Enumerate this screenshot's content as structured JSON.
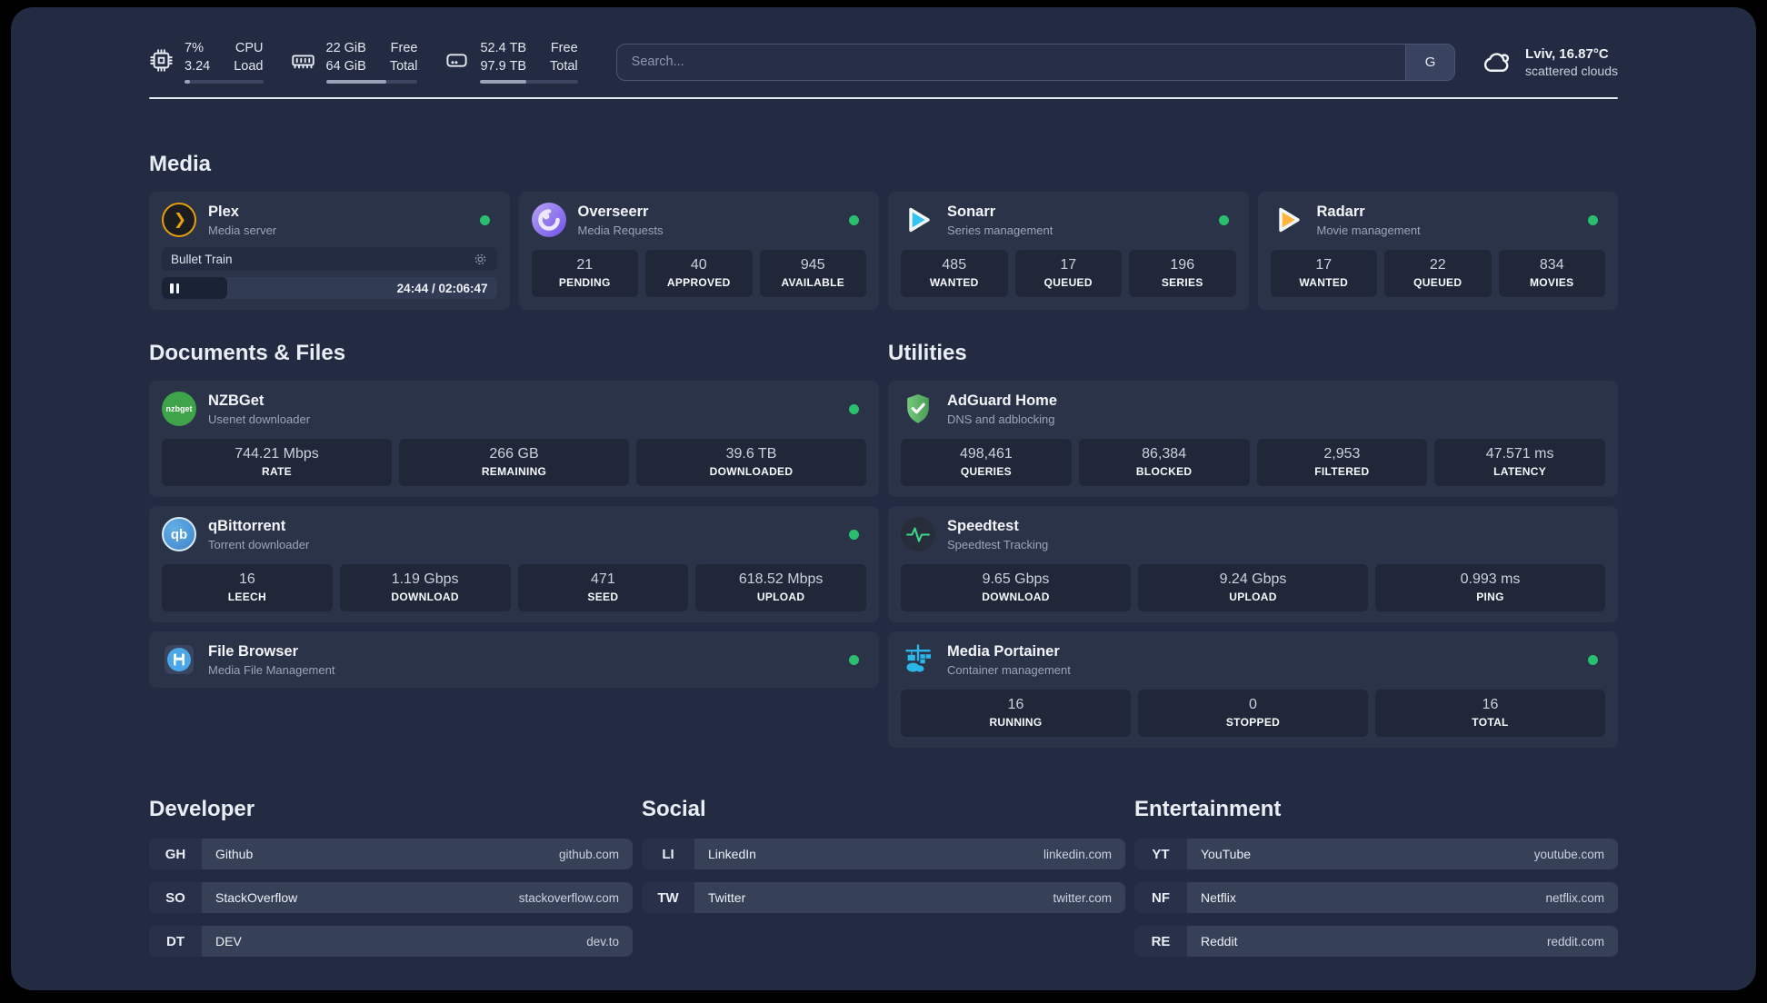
{
  "colors": {
    "status_online": "#2abf6e",
    "accent_plex": "#e5a00d",
    "accent_sonarr": "#35c3f2",
    "accent_radarr": "#ffb53d",
    "accent_adguard": "#5fb469",
    "accent_portainer": "#2cb5e8"
  },
  "system": {
    "cpu": {
      "icon": "cpu-chip",
      "value_top": "7%",
      "value_bottom": "3.24",
      "label_top": "CPU",
      "label_bottom": "Load",
      "progress_pct": 7
    },
    "memory": {
      "icon": "ram-module",
      "value_top": "22 GiB",
      "value_bottom": "64 GiB",
      "label_top": "Free",
      "label_bottom": "Total",
      "progress_pct": 66
    },
    "disk": {
      "icon": "hard-drive",
      "value_top": "52.4 TB",
      "value_bottom": "97.9 TB",
      "label_top": "Free",
      "label_bottom": "Total",
      "progress_pct": 47
    }
  },
  "search": {
    "placeholder": "Search...",
    "engine_button": "G"
  },
  "weather": {
    "icon": "scattered-clouds",
    "summary": "Lviv, 16.87°C",
    "condition": "scattered clouds"
  },
  "media": {
    "title": "Media",
    "plex": {
      "name": "Plex",
      "description": "Media server",
      "status": "online",
      "now_playing": "Bullet Train",
      "time_display": "24:44 / 02:06:47",
      "progress_pct": 19.5
    },
    "overseerr": {
      "name": "Overseerr",
      "description": "Media Requests",
      "status": "online",
      "stats": [
        {
          "value": "21",
          "label": "PENDING"
        },
        {
          "value": "40",
          "label": "APPROVED"
        },
        {
          "value": "945",
          "label": "AVAILABLE"
        }
      ]
    },
    "sonarr": {
      "name": "Sonarr",
      "description": "Series management",
      "status": "online",
      "stats": [
        {
          "value": "485",
          "label": "WANTED"
        },
        {
          "value": "17",
          "label": "QUEUED"
        },
        {
          "value": "196",
          "label": "SERIES"
        }
      ]
    },
    "radarr": {
      "name": "Radarr",
      "description": "Movie management",
      "status": "online",
      "stats": [
        {
          "value": "17",
          "label": "WANTED"
        },
        {
          "value": "22",
          "label": "QUEUED"
        },
        {
          "value": "834",
          "label": "MOVIES"
        }
      ]
    }
  },
  "documents": {
    "title": "Documents & Files",
    "nzbget": {
      "name": "NZBGet",
      "description": "Usenet downloader",
      "status": "online",
      "icon_text": "nzbget",
      "stats": [
        {
          "value": "744.21 Mbps",
          "label": "RATE"
        },
        {
          "value": "266 GB",
          "label": "REMAINING"
        },
        {
          "value": "39.6 TB",
          "label": "DOWNLOADED"
        }
      ]
    },
    "qbittorrent": {
      "name": "qBittorrent",
      "description": "Torrent downloader",
      "status": "online",
      "icon_text": "qb",
      "stats": [
        {
          "value": "16",
          "label": "LEECH"
        },
        {
          "value": "1.19 Gbps",
          "label": "DOWNLOAD"
        },
        {
          "value": "471",
          "label": "SEED"
        },
        {
          "value": "618.52 Mbps",
          "label": "UPLOAD"
        }
      ]
    },
    "filebrowser": {
      "name": "File Browser",
      "description": "Media File Management",
      "status": "online"
    }
  },
  "utilities": {
    "title": "Utilities",
    "adguard": {
      "name": "AdGuard Home",
      "description": "DNS and adblocking",
      "stats": [
        {
          "value": "498,461",
          "label": "QUERIES"
        },
        {
          "value": "86,384",
          "label": "BLOCKED"
        },
        {
          "value": "2,953",
          "label": "FILTERED"
        },
        {
          "value": "47.571 ms",
          "label": "LATENCY"
        }
      ]
    },
    "speedtest": {
      "name": "Speedtest",
      "description": "Speedtest Tracking",
      "stats": [
        {
          "value": "9.65 Gbps",
          "label": "DOWNLOAD"
        },
        {
          "value": "9.24 Gbps",
          "label": "UPLOAD"
        },
        {
          "value": "0.993 ms",
          "label": "PING"
        }
      ]
    },
    "portainer": {
      "name": "Media Portainer",
      "description": "Container management",
      "status": "online",
      "stats": [
        {
          "value": "16",
          "label": "RUNNING"
        },
        {
          "value": "0",
          "label": "STOPPED"
        },
        {
          "value": "16",
          "label": "TOTAL"
        }
      ]
    }
  },
  "bookmarks": [
    {
      "title": "Developer",
      "links": [
        {
          "abbr": "GH",
          "name": "Github",
          "url": "github.com"
        },
        {
          "abbr": "SO",
          "name": "StackOverflow",
          "url": "stackoverflow.com"
        },
        {
          "abbr": "DT",
          "name": "DEV",
          "url": "dev.to"
        }
      ]
    },
    {
      "title": "Social",
      "links": [
        {
          "abbr": "LI",
          "name": "LinkedIn",
          "url": "linkedin.com"
        },
        {
          "abbr": "TW",
          "name": "Twitter",
          "url": "twitter.com"
        }
      ]
    },
    {
      "title": "Entertainment",
      "links": [
        {
          "abbr": "YT",
          "name": "YouTube",
          "url": "youtube.com"
        },
        {
          "abbr": "NF",
          "name": "Netflix",
          "url": "netflix.com"
        },
        {
          "abbr": "RE",
          "name": "Reddit",
          "url": "reddit.com"
        }
      ]
    }
  ]
}
